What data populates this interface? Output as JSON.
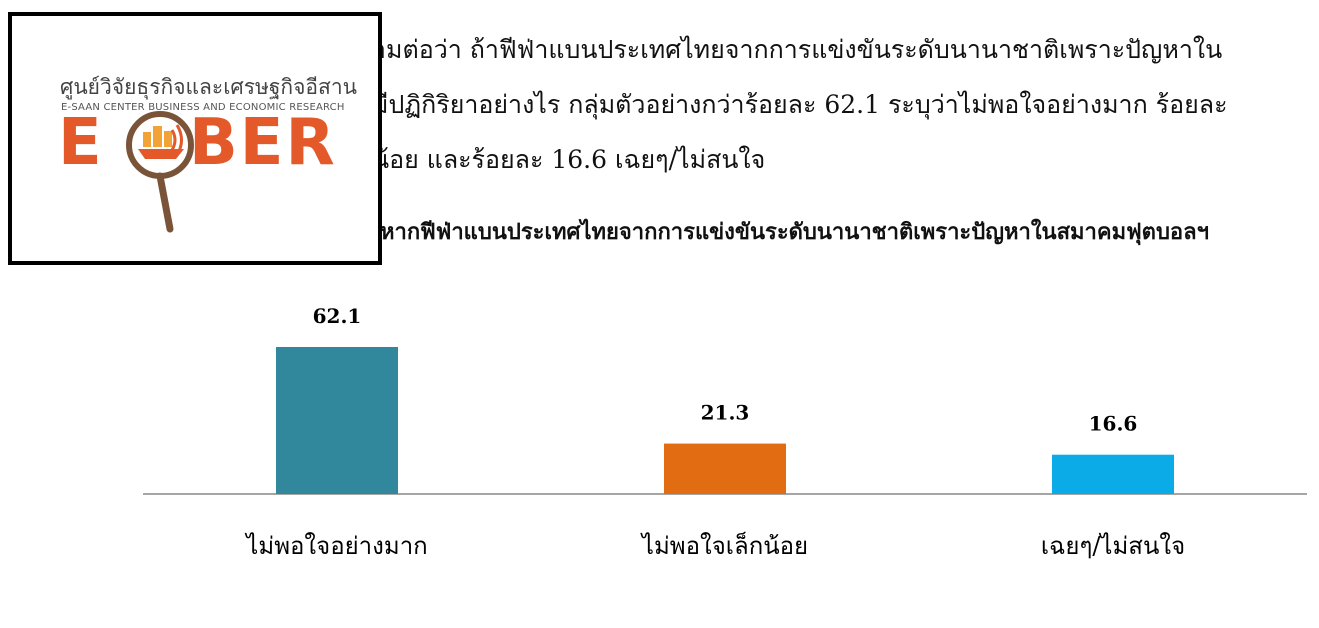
{
  "paragraph": {
    "line1": "ามต่อว่า  ถ้าฟีฟ่าแบนประเทศไทยจากการแข่งขันระดับนานาชาติเพราะปัญหาใน",
    "line2": "มีปฏิกิริยาอย่างไร  กลุ่มตัวอย่างกว่าร้อยละ  62.1  ระบุว่าไม่พอใจอย่างมาก  ร้อยละ",
    "line3": "น้อย  และร้อยละ  16.6  เฉยๆ/ไม่สนใจ"
  },
  "logo": {
    "thai_text": "ศูนย์วิจัยธุรกิจและเศรษฐกิจอีสาน",
    "english_text": "E-SAAN CENTER BUSINESS AND ECONOMIC RESEARCH",
    "wordmark_e": "E",
    "wordmark_ber": "BER",
    "colors": {
      "orange": "#e3592a",
      "brown": "#7a5438"
    }
  },
  "chart_data": {
    "type": "bar",
    "title": "หากฟีฟ่าแบนประเทศไทยจากการแข่งขันระดับนานาชาติเพราะปัญหาในสมาคมฟุตบอลฯ",
    "categories": [
      "ไม่พอใจอย่างมาก",
      "ไม่พอใจเล็กน้อย",
      "เฉยๆ/ไม่สนใจ"
    ],
    "values": [
      62.1,
      21.3,
      16.6
    ],
    "value_labels": [
      "62.1",
      "21.3",
      "16.6"
    ],
    "colors": [
      "#31879c",
      "#e26c12",
      "#0aabe6"
    ],
    "ylim": [
      0,
      62.1
    ],
    "grid": false,
    "legend": "none"
  }
}
